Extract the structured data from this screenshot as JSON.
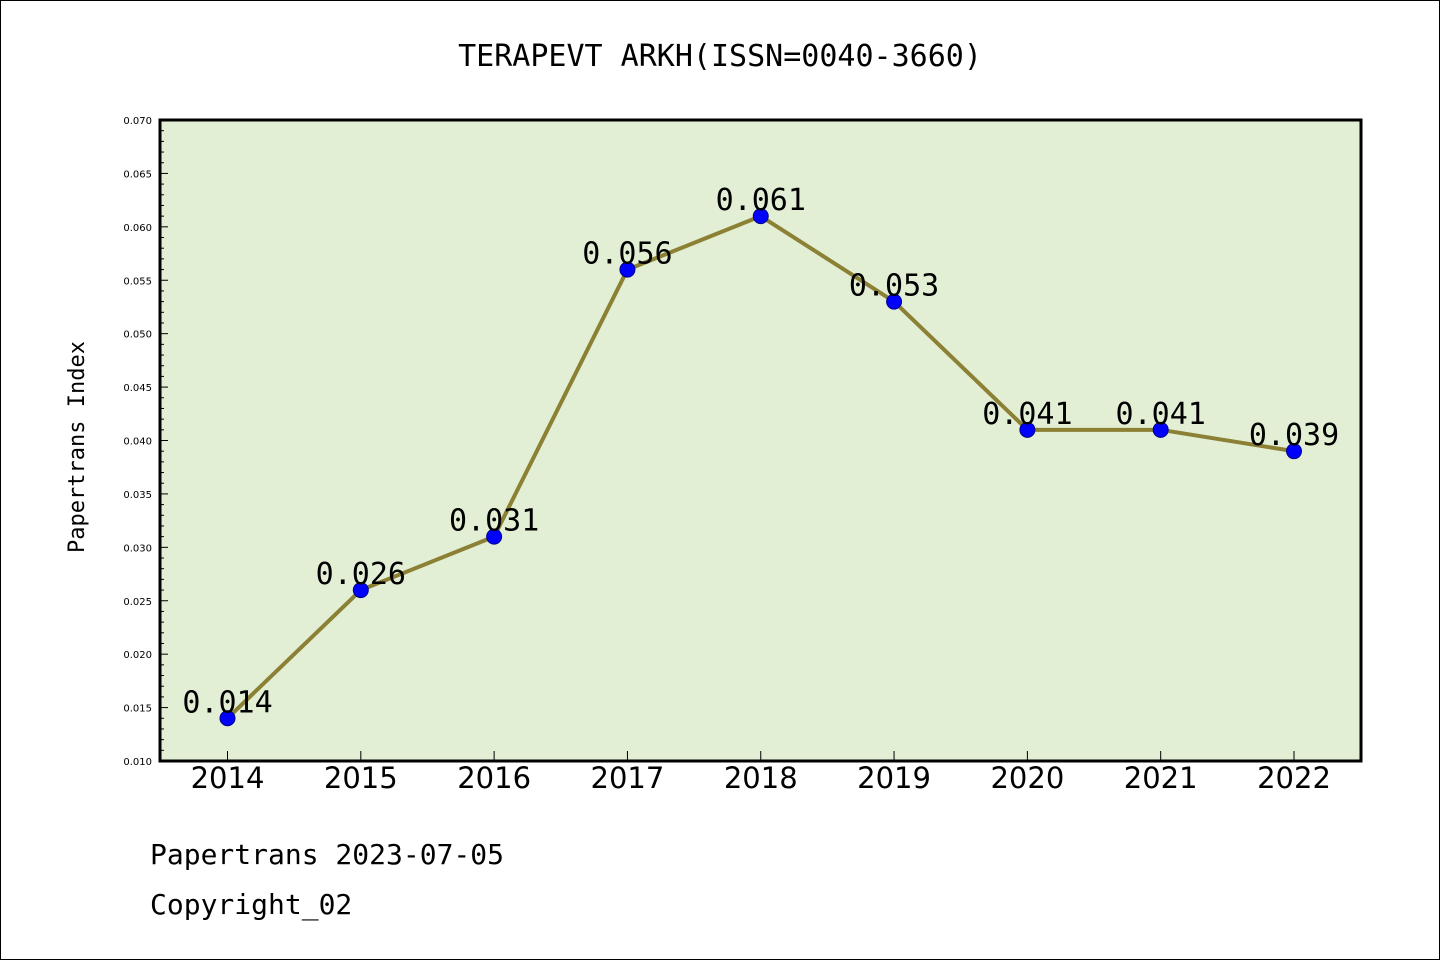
{
  "chart_data": {
    "type": "line",
    "title": "TERAPEVT ARKH(ISSN=0040-3660)",
    "xlabel": "",
    "ylabel": "Papertrans Index",
    "categories": [
      "2014",
      "2015",
      "2016",
      "2017",
      "2018",
      "2019",
      "2020",
      "2021",
      "2022"
    ],
    "values": [
      0.014,
      0.026,
      0.031,
      0.056,
      0.061,
      0.053,
      0.041,
      0.041,
      0.039
    ],
    "data_labels": [
      "0.014",
      "0.026",
      "0.031",
      "0.056",
      "0.061",
      "0.053",
      "0.041",
      "0.041",
      "0.039"
    ],
    "ylim": [
      0.01,
      0.07
    ],
    "yticks": [
      "0.010",
      "0.015",
      "0.020",
      "0.025",
      "0.030",
      "0.035",
      "0.040",
      "0.045",
      "0.050",
      "0.055",
      "0.060",
      "0.065",
      "0.070"
    ],
    "grid": false,
    "colors": {
      "plot_background": "#e2efd5",
      "line": "#8b8033",
      "marker": "#0000ff"
    }
  },
  "footer": {
    "line1": "Papertrans 2023-07-05",
    "line2": "Copyright_02"
  }
}
